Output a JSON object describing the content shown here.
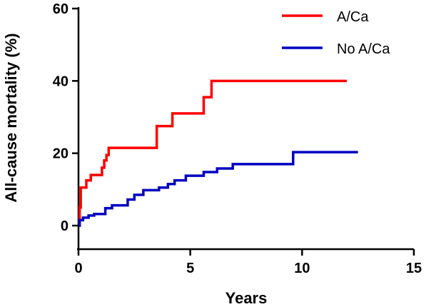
{
  "chart_data": {
    "type": "line",
    "step": true,
    "xlabel": "Years",
    "ylabel": "All-cause mortality (%)",
    "xlim": [
      0,
      15
    ],
    "ylim": [
      0,
      60
    ],
    "xticks": [
      0,
      5,
      10,
      15
    ],
    "yticks": [
      0,
      20,
      40,
      60
    ],
    "xtick_labels": [
      "0",
      "5",
      "10",
      "15"
    ],
    "ytick_labels": [
      "0",
      "20",
      "40",
      "60"
    ],
    "grid": false,
    "legend_position": "top-right",
    "series": [
      {
        "name": "A/Ca",
        "color": "#ff0000",
        "x": [
          0,
          0.05,
          0.1,
          0.35,
          0.55,
          1.05,
          1.15,
          1.25,
          1.35,
          3.5,
          4.2,
          5.6,
          5.95,
          12.0
        ],
        "y": [
          0,
          5,
          10.5,
          12.5,
          14,
          16,
          18,
          19.5,
          21.5,
          27.5,
          31,
          35.5,
          40,
          40
        ]
      },
      {
        "name": "No A/Ca",
        "color": "#0000c0",
        "x": [
          0,
          0.05,
          0.2,
          0.45,
          0.7,
          1.2,
          1.5,
          2.2,
          2.5,
          2.9,
          3.6,
          4.0,
          4.3,
          4.8,
          5.6,
          6.2,
          6.9,
          9.6,
          12.5
        ],
        "y": [
          0,
          1.5,
          2.2,
          2.8,
          3.2,
          4.8,
          5.6,
          7.2,
          8.5,
          9.8,
          10.5,
          11.5,
          12.5,
          13.8,
          14.8,
          15.8,
          17,
          20.3,
          20.3
        ]
      }
    ]
  }
}
